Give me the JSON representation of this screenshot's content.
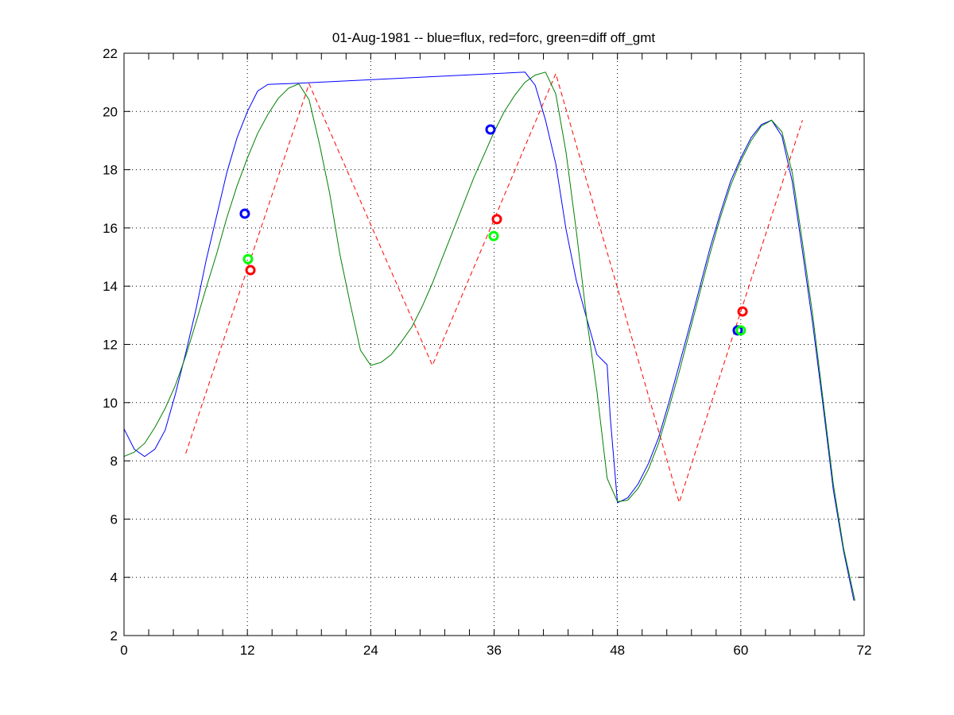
{
  "chart_data": {
    "type": "line",
    "title": "01-Aug-1981 -- blue=flux, red=forc, green=diff off_gmt",
    "xlabel": "",
    "ylabel": "",
    "xlim": [
      0,
      72
    ],
    "ylim": [
      2,
      22
    ],
    "xticks": [
      0,
      12,
      24,
      36,
      48,
      60,
      72
    ],
    "yticks": [
      2,
      4,
      6,
      8,
      10,
      12,
      14,
      16,
      18,
      20,
      22
    ],
    "minor_xtick_step": 2.4,
    "grid": true,
    "series": [
      {
        "name": "flux",
        "color": "#0000ff",
        "style": "solid",
        "points": [
          [
            0,
            9.1
          ],
          [
            1,
            8.4
          ],
          [
            2,
            8.15
          ],
          [
            3,
            8.4
          ],
          [
            4,
            9.05
          ],
          [
            5,
            10.3
          ],
          [
            6,
            11.7
          ],
          [
            7,
            13.2
          ],
          [
            8,
            14.9
          ],
          [
            9,
            16.4
          ],
          [
            10,
            17.9
          ],
          [
            11,
            19.1
          ],
          [
            12,
            20.0
          ],
          [
            13,
            20.7
          ],
          [
            14,
            20.93
          ],
          [
            17,
            20.97
          ],
          [
            39,
            21.35
          ],
          [
            40,
            20.9
          ],
          [
            41,
            19.7
          ],
          [
            42,
            18.2
          ],
          [
            43,
            15.95
          ],
          [
            44,
            14.2
          ],
          [
            45,
            12.9
          ],
          [
            46,
            11.65
          ],
          [
            47,
            11.3
          ],
          [
            47.3,
            9.5
          ],
          [
            48,
            6.56
          ],
          [
            49,
            6.73
          ],
          [
            50,
            7.2
          ],
          [
            51,
            7.9
          ],
          [
            52,
            8.8
          ],
          [
            53,
            10.0
          ],
          [
            54,
            11.3
          ],
          [
            55,
            12.6
          ],
          [
            56,
            13.95
          ],
          [
            57,
            15.3
          ],
          [
            58,
            16.5
          ],
          [
            59,
            17.6
          ],
          [
            60,
            18.4
          ],
          [
            61,
            19.1
          ],
          [
            62,
            19.55
          ],
          [
            63,
            19.7
          ],
          [
            64,
            19.15
          ],
          [
            65,
            17.6
          ],
          [
            66,
            15.2
          ],
          [
            67,
            12.7
          ],
          [
            68,
            9.9
          ],
          [
            69,
            7.0
          ],
          [
            70,
            4.9
          ],
          [
            71,
            3.2
          ]
        ]
      },
      {
        "name": "forc",
        "color": "#ff0000",
        "style": "dashed",
        "points": [
          [
            6,
            8.25
          ],
          [
            18,
            20.95
          ],
          [
            30,
            11.28
          ],
          [
            42,
            21.3
          ],
          [
            54,
            6.57
          ],
          [
            66,
            19.7
          ]
        ]
      },
      {
        "name": "diff",
        "color": "#008000",
        "style": "solid",
        "points": [
          [
            0,
            8.15
          ],
          [
            1,
            8.3
          ],
          [
            2,
            8.6
          ],
          [
            3,
            9.15
          ],
          [
            4,
            9.8
          ],
          [
            5,
            10.6
          ],
          [
            6,
            11.6
          ],
          [
            7,
            12.75
          ],
          [
            8,
            13.95
          ],
          [
            9,
            15.1
          ],
          [
            10,
            16.35
          ],
          [
            11,
            17.45
          ],
          [
            12,
            18.4
          ],
          [
            13,
            19.25
          ],
          [
            14,
            19.9
          ],
          [
            15,
            20.45
          ],
          [
            16,
            20.8
          ],
          [
            17,
            20.95
          ],
          [
            18,
            20.4
          ],
          [
            19,
            18.9
          ],
          [
            20,
            17.2
          ],
          [
            21,
            15.1
          ],
          [
            22,
            13.4
          ],
          [
            23,
            11.8
          ],
          [
            24,
            11.28
          ],
          [
            25,
            11.38
          ],
          [
            26,
            11.65
          ],
          [
            27,
            12.1
          ],
          [
            28,
            12.6
          ],
          [
            29,
            13.3
          ],
          [
            30,
            14.1
          ],
          [
            31,
            15.0
          ],
          [
            32,
            15.9
          ],
          [
            33,
            16.8
          ],
          [
            34,
            17.7
          ],
          [
            35,
            18.5
          ],
          [
            36,
            19.3
          ],
          [
            37,
            20.0
          ],
          [
            38,
            20.55
          ],
          [
            39,
            21.0
          ],
          [
            40,
            21.25
          ],
          [
            41,
            21.35
          ],
          [
            42,
            20.6
          ],
          [
            43,
            18.6
          ],
          [
            44,
            15.9
          ],
          [
            45,
            12.9
          ],
          [
            46,
            10.4
          ],
          [
            47,
            7.4
          ],
          [
            48,
            6.6
          ],
          [
            49,
            6.65
          ],
          [
            50,
            7.05
          ],
          [
            51,
            7.7
          ],
          [
            52,
            8.6
          ],
          [
            53,
            9.8
          ],
          [
            54,
            11.05
          ],
          [
            55,
            12.4
          ],
          [
            56,
            13.75
          ],
          [
            57,
            15.1
          ],
          [
            58,
            16.35
          ],
          [
            59,
            17.45
          ],
          [
            60,
            18.3
          ],
          [
            61,
            19.0
          ],
          [
            62,
            19.5
          ],
          [
            63,
            19.7
          ],
          [
            64,
            19.3
          ],
          [
            65,
            17.9
          ],
          [
            66,
            15.5
          ],
          [
            67,
            13.0
          ],
          [
            68,
            10.1
          ],
          [
            69,
            7.2
          ],
          [
            70,
            5.0
          ],
          [
            71.1,
            3.2
          ]
        ]
      }
    ],
    "markers": [
      {
        "series": "flux",
        "color": "#0000ff",
        "x": 11.75,
        "y": 16.49
      },
      {
        "series": "diff",
        "color": "#00ff00",
        "x": 12.06,
        "y": 14.93
      },
      {
        "series": "forc",
        "color": "#ff0000",
        "x": 12.3,
        "y": 14.55
      },
      {
        "series": "flux",
        "color": "#0000ff",
        "x": 35.65,
        "y": 19.38
      },
      {
        "series": "forc",
        "color": "#ff0000",
        "x": 36.27,
        "y": 16.3
      },
      {
        "series": "diff",
        "color": "#00ff00",
        "x": 35.96,
        "y": 15.72
      },
      {
        "series": "flux",
        "color": "#0000ff",
        "x": 59.7,
        "y": 12.48
      },
      {
        "series": "diff",
        "color": "#00ff00",
        "x": 60.0,
        "y": 12.48
      },
      {
        "series": "forc",
        "color": "#ff0000",
        "x": 60.17,
        "y": 13.13
      }
    ]
  }
}
